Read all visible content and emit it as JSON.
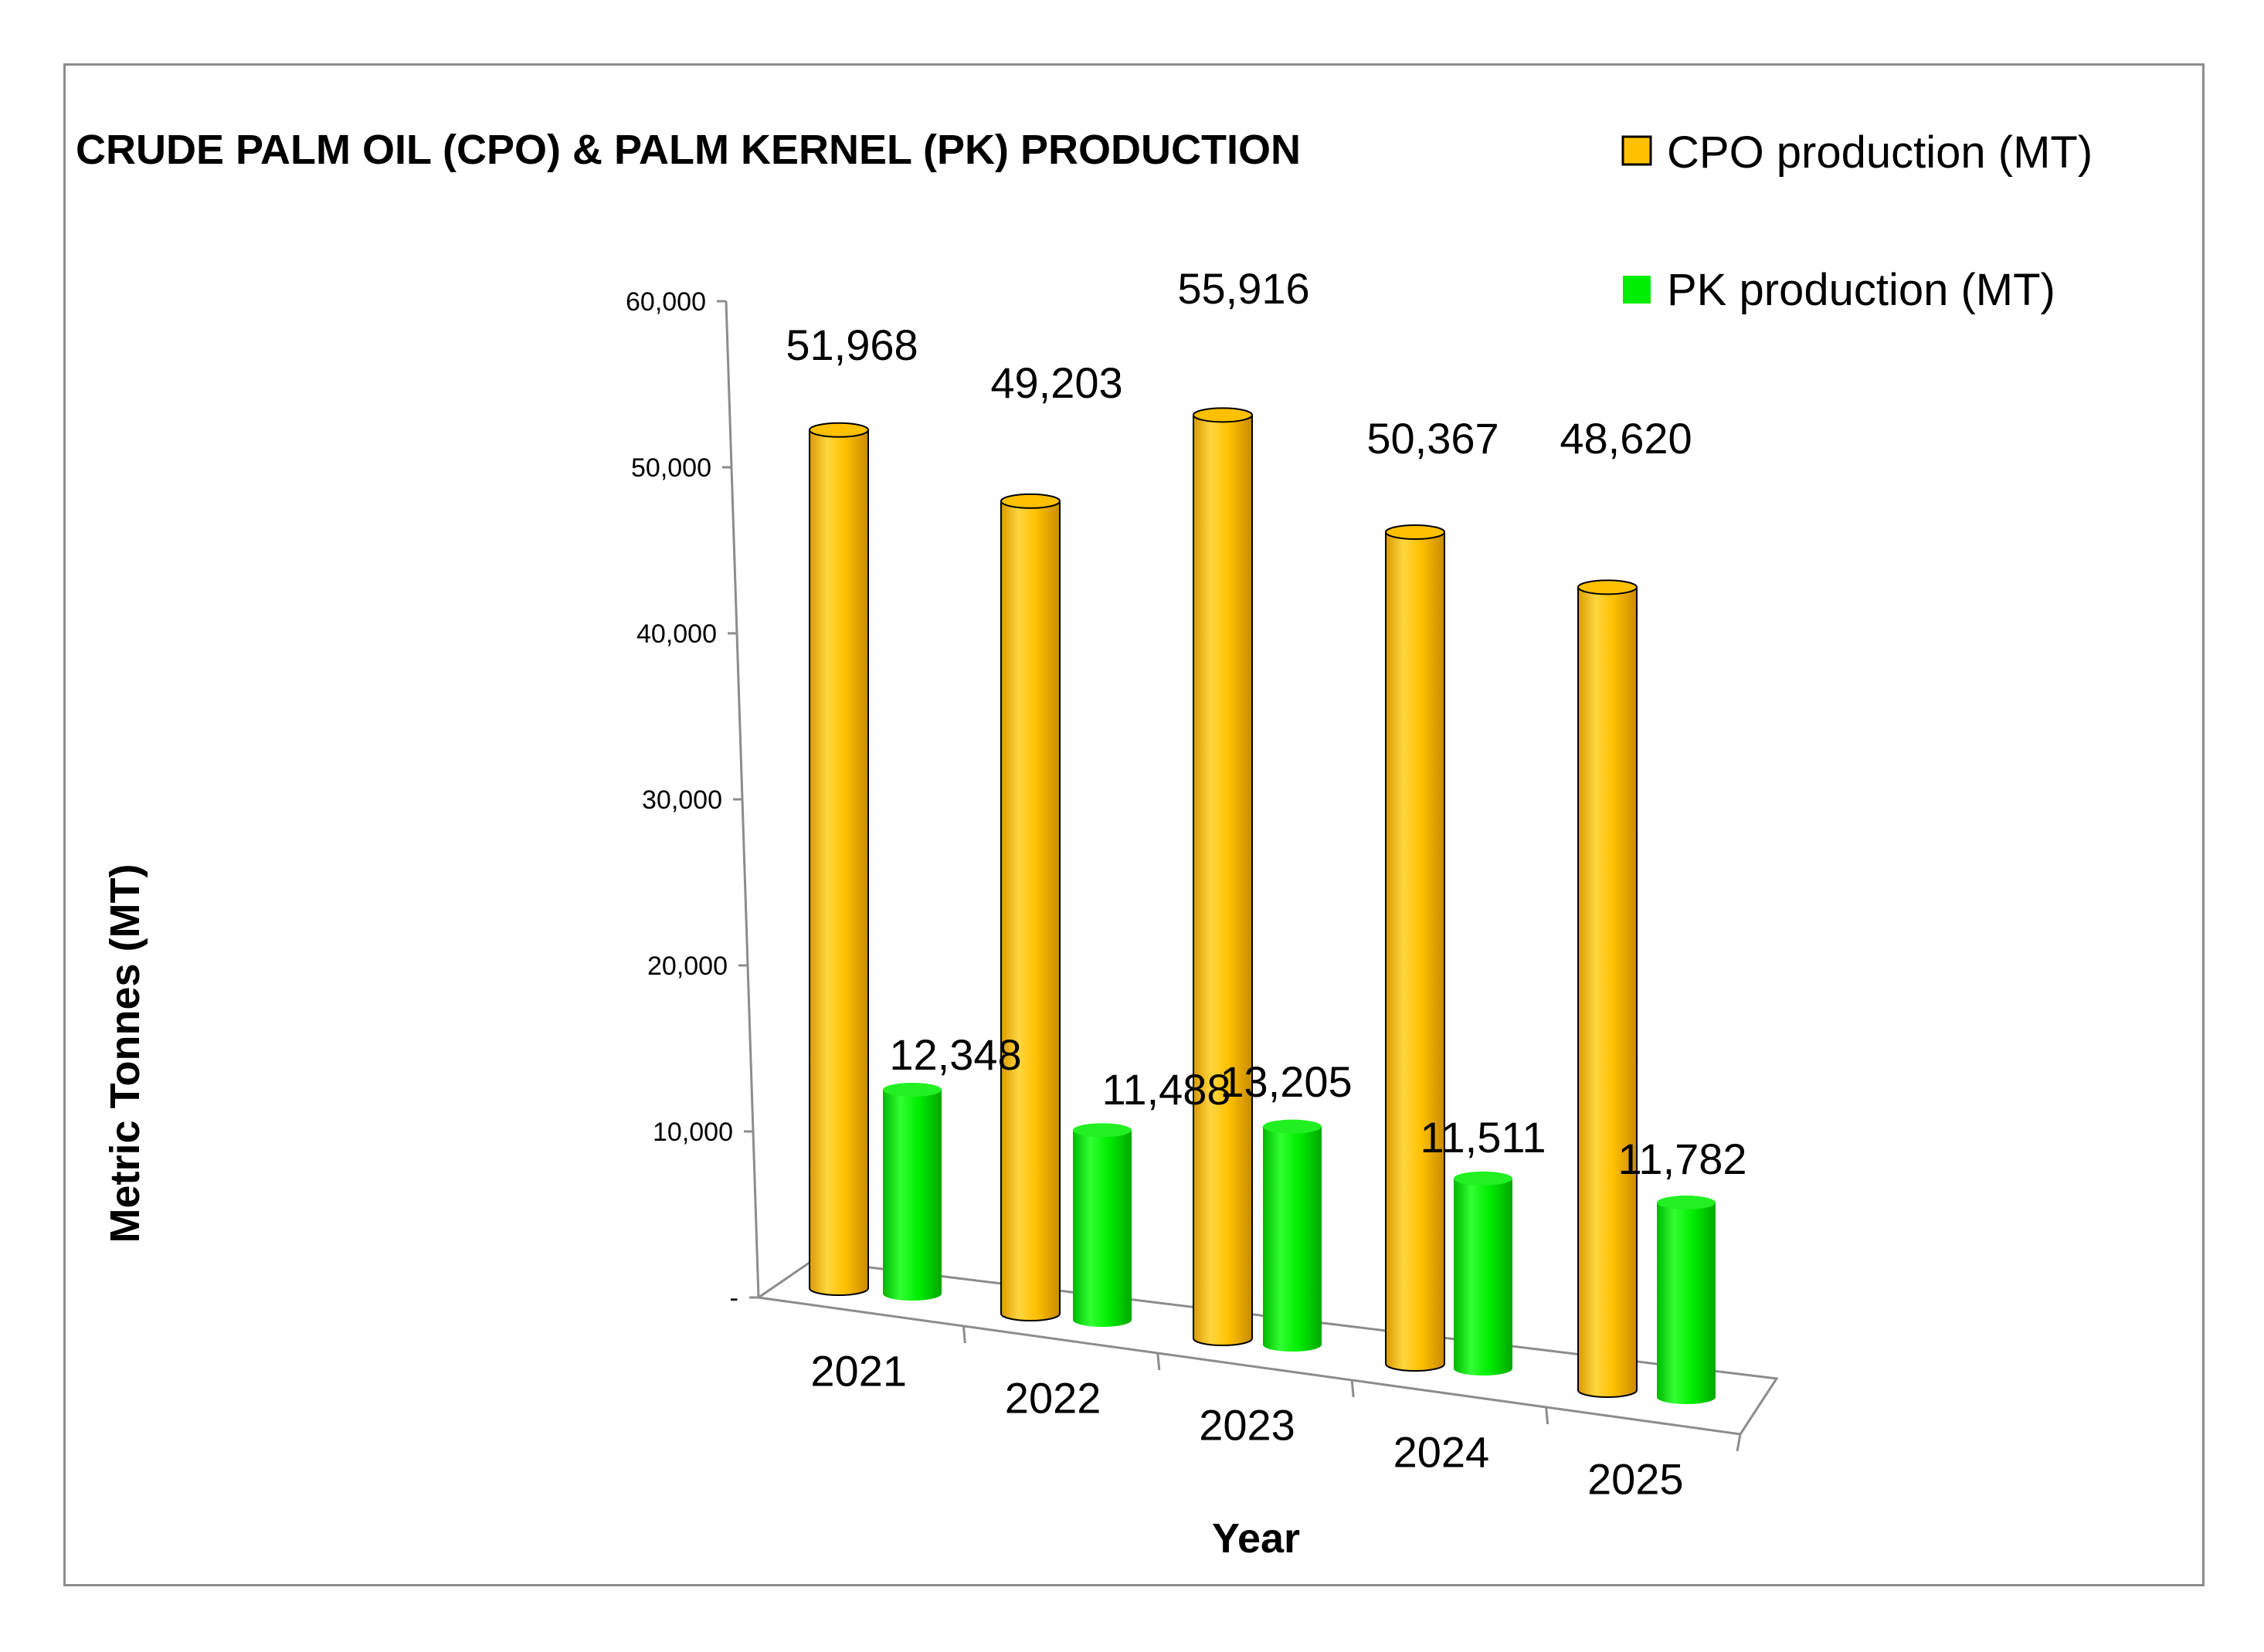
{
  "chart_data": {
    "type": "bar",
    "title": "CRUDE PALM OIL (CPO) & PALM KERNEL (PK) PRODUCTION",
    "xlabel": "Year",
    "ylabel": "Metric Tonnes (MT)",
    "categories": [
      "2021",
      "2022",
      "2023",
      "2024",
      "2025"
    ],
    "series": [
      {
        "name": "CPO production (MT)",
        "values": [
          51968,
          49203,
          55916,
          50367,
          48620
        ],
        "labels": [
          "51,968",
          "49,203",
          "55,916",
          "50,367",
          "48,620"
        ],
        "color": "#FFC000"
      },
      {
        "name": "PK production (MT)",
        "values": [
          12348,
          11488,
          13205,
          11511,
          11782
        ],
        "labels": [
          "12,348",
          "11,488",
          "13,205",
          "11,511",
          "11,782"
        ],
        "color": "#00EE00"
      }
    ],
    "ylim": [
      0,
      60000
    ],
    "yticks": [
      {
        "value": 0,
        "label": "-"
      },
      {
        "value": 10000,
        "label": "10,000"
      },
      {
        "value": 20000,
        "label": "20,000"
      },
      {
        "value": 30000,
        "label": "30,000"
      },
      {
        "value": 40000,
        "label": "40,000"
      },
      {
        "value": 50000,
        "label": "50,000"
      },
      {
        "value": 60000,
        "label": "60,000"
      }
    ],
    "style": "3d-cylinder",
    "grid": false,
    "legend_position": "top-right"
  }
}
